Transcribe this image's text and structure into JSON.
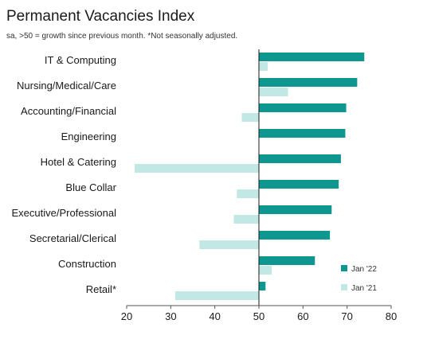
{
  "chart_data": {
    "type": "bar",
    "orientation": "horizontal",
    "title": "Permanent Vacancies Index",
    "subtitle": "sa, >50 = growth since previous month. *Not seasonally adjusted.",
    "categories": [
      "IT & Computing",
      "Nursing/Medical/Care",
      "Accounting/Financial",
      "Engineering",
      "Hotel & Catering",
      "Blue Collar",
      "Executive/Professional",
      "Secretarial/Clerical",
      "Construction",
      "Retail*"
    ],
    "series": [
      {
        "name": "Jan '22",
        "color": "#0e9690",
        "values": [
          73.9,
          72.3,
          69.8,
          69.6,
          68.6,
          68.1,
          66.5,
          66.1,
          62.7,
          51.5
        ]
      },
      {
        "name": "Jan '21",
        "color": "#c2e8e6",
        "values": [
          52.0,
          56.6,
          46.1,
          null,
          21.8,
          45.0,
          44.3,
          36.5,
          52.9,
          31.0
        ]
      }
    ],
    "baseline": 50,
    "xlim": [
      20,
      80
    ],
    "xticks": [
      20,
      30,
      40,
      50,
      60,
      70,
      80
    ],
    "legend_position": "bottom-right"
  }
}
